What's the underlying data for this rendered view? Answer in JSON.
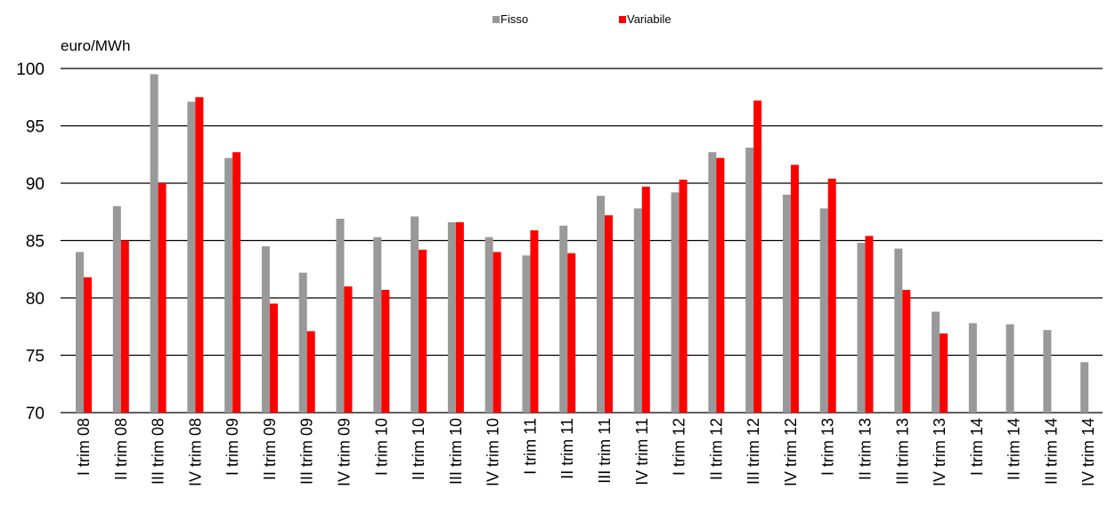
{
  "chart_data": {
    "type": "bar",
    "ylabel": "euro/MWh",
    "ylim": [
      70,
      100
    ],
    "yticks": [
      70,
      75,
      80,
      85,
      90,
      95,
      100
    ],
    "grid": true,
    "legend_position": "top-center",
    "categories": [
      "I trim 08",
      "II trim 08",
      "III trim 08",
      "IV trim 08",
      "I trim 09",
      "II trim 09",
      "III trim 09",
      "IV trim 09",
      "I trim 10",
      "II trim 10",
      "III trim 10",
      "IV trim 10",
      "I trim 11",
      "II trim 11",
      "III trim 11",
      "IV trim 11",
      "I trim 12",
      "II trim 12",
      "III trim 12",
      "IV trim 12",
      "I trim 13",
      "II trim 13",
      "III trim 13",
      "IV trim 13",
      "I trim 14",
      "II trim 14",
      "III trim 14",
      "IV trim 14"
    ],
    "series": [
      {
        "name": "Fisso",
        "color": "#999999",
        "values": [
          84.0,
          88.0,
          99.5,
          97.1,
          92.2,
          84.5,
          82.2,
          86.9,
          85.3,
          87.1,
          86.6,
          85.3,
          83.7,
          86.3,
          88.9,
          87.8,
          89.2,
          92.7,
          93.1,
          89.0,
          87.8,
          84.8,
          84.3,
          78.8,
          77.8,
          77.7,
          77.2,
          74.4
        ]
      },
      {
        "name": "Variabile",
        "color": "#ff0000",
        "values": [
          81.8,
          85.0,
          90.0,
          97.5,
          92.7,
          79.5,
          77.1,
          81.0,
          80.7,
          84.2,
          86.6,
          84.0,
          85.9,
          83.9,
          87.2,
          89.7,
          90.3,
          92.2,
          97.2,
          91.6,
          90.4,
          85.4,
          80.7,
          76.9,
          null,
          null,
          null,
          null
        ]
      }
    ]
  }
}
